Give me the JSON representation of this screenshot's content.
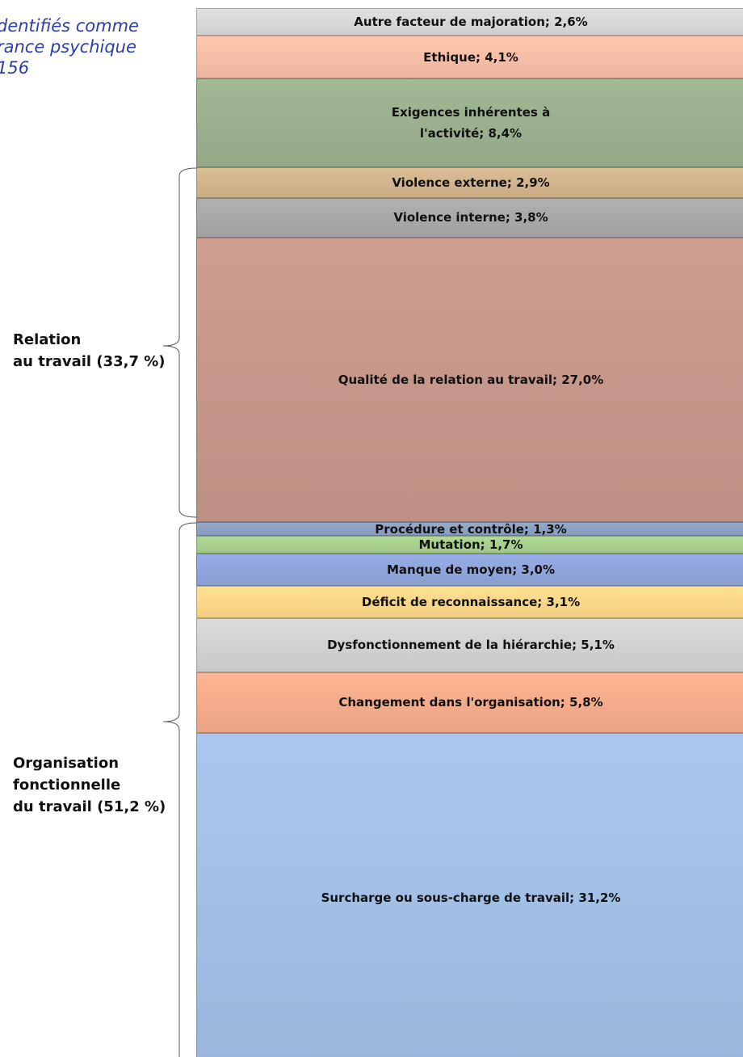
{
  "chart_data": {
    "type": "bar",
    "stacked": true,
    "title_lines": [
      "dentifiés comme",
      "rance psychique",
      "156"
    ],
    "ylim": [
      0,
      100
    ],
    "series": [
      {
        "values": [
          31.2
        ],
        "value_labels": [
          "Surcharge ou sous-charge de travail; 31,2%"
        ],
        "color": "#a3c0e6"
      },
      {
        "values": [
          5.8
        ],
        "value_labels": [
          "Changement dans l'organisation; 5,8%"
        ],
        "color": "#f5ad8c"
      },
      {
        "values": [
          5.1
        ],
        "value_labels": [
          "Dysfonctionnement de la hiérarchie; 5,1%"
        ],
        "color": "#d3d3d3"
      },
      {
        "values": [
          3.1
        ],
        "value_labels": [
          "Déficit de reconnaissance; 3,1%"
        ],
        "color": "#ffd88a"
      },
      {
        "values": [
          3.0
        ],
        "value_labels": [
          "Manque de moyen; 3,0%"
        ],
        "color": "#91a6dc"
      },
      {
        "values": [
          1.7
        ],
        "value_labels": [
          "Mutation; 1,7%"
        ],
        "color": "#a9d18e"
      },
      {
        "values": [
          1.3
        ],
        "value_labels": [
          "Procédure et contrôle; 1,3%"
        ],
        "color": "#8fa3c4"
      },
      {
        "values": [
          27.0
        ],
        "value_labels": [
          "Qualité de la relation au travail; 27,0%"
        ],
        "color": "#c7988a"
      },
      {
        "values": [
          3.8
        ],
        "value_labels": [
          "Violence interne; 3,8%"
        ],
        "color": "#a9a9a9"
      },
      {
        "values": [
          2.9
        ],
        "value_labels": [
          "Violence externe; 2,9%"
        ],
        "color": "#d4b68e"
      },
      {
        "values": [
          8.4
        ],
        "value_labels": [
          "Exigences inhérentes à\nl'activité; 8,4%"
        ],
        "color": "#9cb18e"
      },
      {
        "values": [
          4.1
        ],
        "value_labels": [
          "Ethique; 4,1%"
        ],
        "color": "#f8bfa6"
      },
      {
        "values": [
          2.6
        ],
        "value_labels": [
          "Autre facteur de majoration; 2,6%"
        ],
        "color": "#d9d9d9"
      }
    ],
    "annotations": [
      "Relation\nau travail (33,7 %)",
      "Organisation\nfonctionnelle\ndu travail (51,2 %)"
    ]
  }
}
